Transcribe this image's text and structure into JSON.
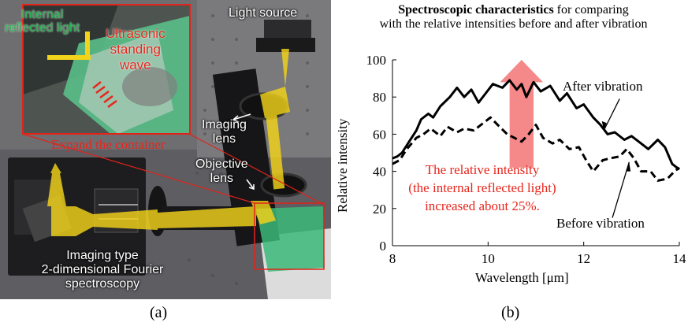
{
  "panel_a": {
    "label": "(a)",
    "inset": {
      "internal_light": [
        "Internal",
        "reflected light"
      ],
      "ultrasonic": [
        "Ultrasonic",
        "standing",
        "wave"
      ]
    },
    "labels": {
      "light_source": "Light source",
      "expand": "Expand the container",
      "imaging_lens": [
        "Imaging",
        "lens"
      ],
      "objective_lens": [
        "Objective",
        "lens"
      ],
      "spectroscopy": [
        "Imaging type",
        "2-dimensional Fourier",
        "spectroscopy"
      ]
    },
    "colors": {
      "beam": "#f2d21a",
      "frame": "#e2231a",
      "green_label": "#22b14c",
      "red_label": "#e8251b"
    }
  },
  "panel_b": {
    "label": "(b)",
    "title_bold": "Spectroscopic characteristics",
    "title_rest": " for comparing",
    "title_line2": "with the relative intensities before and after vibration",
    "annotation": [
      "The relative intensity",
      "(the internal reflected light)",
      "increased about 25%."
    ],
    "arrow_color": "#f47b7b",
    "annotation_color": "#e8251b"
  },
  "chart_data": {
    "type": "line",
    "xlabel": "Wavelength [μm]",
    "ylabel": "Relative intensity",
    "xlim": [
      8,
      14
    ],
    "ylim": [
      0,
      100
    ],
    "xticks": [
      "8",
      "10",
      "12",
      "14"
    ],
    "yticks": [
      "0",
      "20",
      "40",
      "60",
      "80",
      "100"
    ],
    "grid": false,
    "series": [
      {
        "name": "After vibration",
        "style": "solid",
        "x": [
          8.0,
          8.1,
          8.2,
          8.35,
          8.5,
          8.6,
          8.75,
          8.85,
          9.0,
          9.2,
          9.35,
          9.5,
          9.65,
          9.8,
          9.95,
          10.1,
          10.3,
          10.45,
          10.6,
          10.7,
          10.8,
          10.95,
          11.1,
          11.3,
          11.5,
          11.65,
          11.85,
          12.0,
          12.2,
          12.35,
          12.5,
          12.65,
          12.85,
          13.0,
          13.2,
          13.35,
          13.55,
          13.7,
          13.85,
          14.0
        ],
        "y": [
          47,
          48,
          50,
          56,
          62,
          68,
          71,
          69,
          75,
          80,
          85,
          80,
          84,
          77,
          82,
          87,
          85,
          89,
          84,
          87,
          80,
          88,
          83,
          86,
          78,
          82,
          74,
          76,
          69,
          65,
          60,
          61,
          57,
          59,
          55,
          52,
          57,
          53,
          44,
          41
        ]
      },
      {
        "name": "Before vibration",
        "style": "dashed",
        "x": [
          8.0,
          8.15,
          8.3,
          8.5,
          8.65,
          8.8,
          9.0,
          9.15,
          9.35,
          9.5,
          9.7,
          9.9,
          10.05,
          10.2,
          10.4,
          10.55,
          10.7,
          10.85,
          11.0,
          11.15,
          11.35,
          11.5,
          11.7,
          11.9,
          12.05,
          12.2,
          12.4,
          12.55,
          12.75,
          12.9,
          13.05,
          13.2,
          13.4,
          13.55,
          13.75,
          13.9,
          14.0
        ],
        "y": [
          44,
          46,
          52,
          58,
          60,
          63,
          59,
          64,
          61,
          63,
          62,
          66,
          69,
          65,
          60,
          58,
          56,
          60,
          65,
          58,
          55,
          57,
          52,
          53,
          46,
          40,
          46,
          47,
          48,
          52,
          47,
          40,
          40,
          35,
          36,
          40,
          42
        ]
      }
    ]
  }
}
